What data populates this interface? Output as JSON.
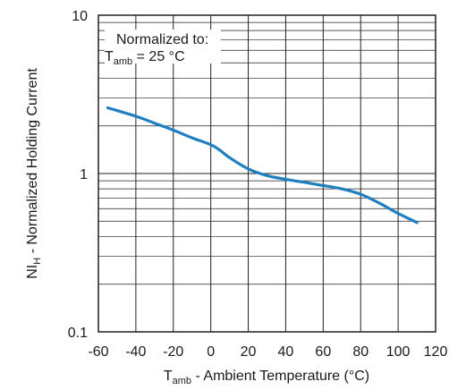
{
  "chart_data": {
    "type": "line",
    "x_scale": "linear",
    "y_scale": "log",
    "xlim": [
      -60,
      120
    ],
    "ylim": [
      0.1,
      10
    ],
    "x_ticks": [
      -60,
      -40,
      -20,
      0,
      20,
      40,
      60,
      80,
      100,
      120
    ],
    "x_tick_labels": [
      "-60",
      "-40",
      "-20",
      "0",
      "20",
      "40",
      "60",
      "80",
      "100",
      "120"
    ],
    "y_ticks": [
      0.1,
      1,
      10
    ],
    "y_tick_labels": [
      "0.1",
      "1",
      "10"
    ],
    "grid": true,
    "xlabel": {
      "main": "T",
      "sub": "amb",
      "rest": " - Ambient Temperature (°C)"
    },
    "ylabel": {
      "main": "NI",
      "sub": "H",
      "rest": " - Normalized Holding Current"
    },
    "annotation": {
      "line1": "Normalized to:",
      "line2_main": "T",
      "line2_sub": "amb",
      "line2_rest": " = 25 °C"
    },
    "series": [
      {
        "color": "#1f7fc0",
        "x": [
          -55,
          -40,
          -30,
          -20,
          -10,
          0,
          5,
          10,
          20,
          30,
          40,
          50,
          60,
          70,
          80,
          90,
          100,
          110
        ],
        "y": [
          2.6,
          2.3,
          2.08,
          1.88,
          1.68,
          1.52,
          1.4,
          1.26,
          1.07,
          0.97,
          0.92,
          0.88,
          0.84,
          0.8,
          0.74,
          0.65,
          0.56,
          0.49
        ]
      }
    ]
  }
}
